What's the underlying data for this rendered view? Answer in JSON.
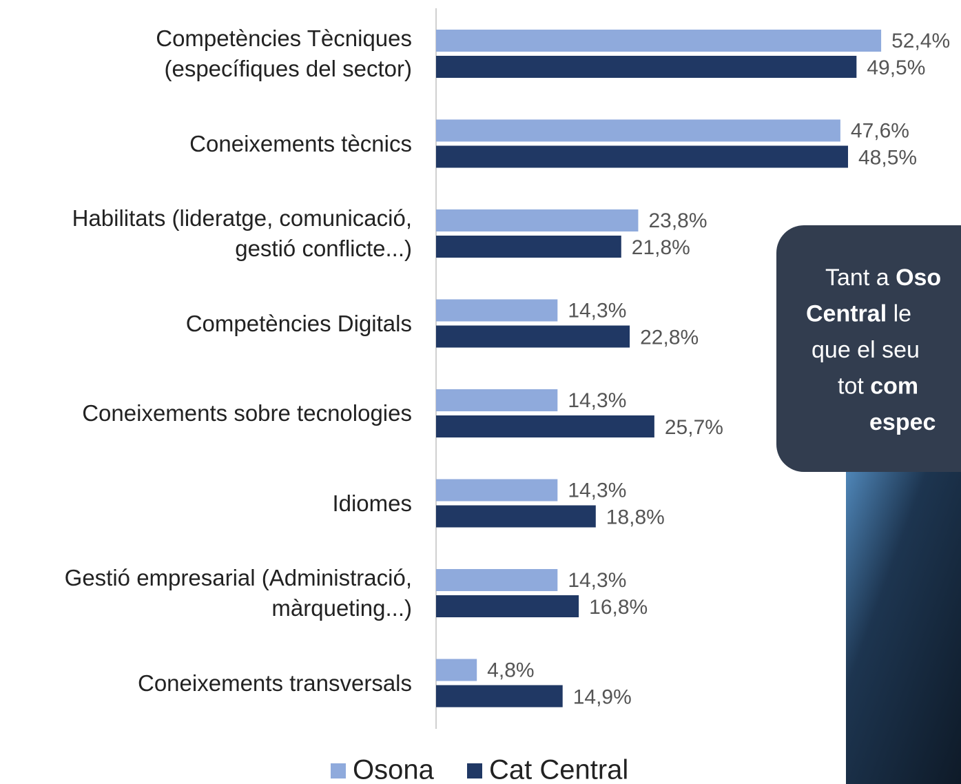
{
  "chart_data": {
    "type": "bar",
    "orientation": "horizontal",
    "categories": [
      "Competències Tècniques\n(específiques del sector)",
      "Coneixements tècnics",
      "Habilitats (lideratge, comunicació,\ngestió conflicte...)",
      "Competències Digitals",
      "Coneixements sobre tecnologies",
      "Idiomes",
      "Gestió empresarial (Administració,\nmàrqueting...)",
      "Coneixements transversals"
    ],
    "series": [
      {
        "name": "Osona",
        "color": "#8faadc",
        "values": [
          52.4,
          47.6,
          23.8,
          14.3,
          14.3,
          14.3,
          14.3,
          4.8
        ],
        "value_labels": [
          "52,4%",
          "47,6%",
          "23,8%",
          "14,3%",
          "14,3%",
          "14,3%",
          "14,3%",
          "4,8%"
        ]
      },
      {
        "name": "Cat Central",
        "color": "#203864",
        "values": [
          49.5,
          48.5,
          21.8,
          22.8,
          25.7,
          18.8,
          16.8,
          14.9
        ],
        "value_labels": [
          "49,5%",
          "48,5%",
          "21,8%",
          "22,8%",
          "25,7%",
          "18,8%",
          "16,8%",
          "14,9%"
        ]
      }
    ],
    "callout": {
      "lines": [
        [
          {
            "text": "Tant a "
          },
          {
            "text": "Oso",
            "bold": true
          }
        ],
        [
          {
            "text": "Central",
            "bold": true
          },
          {
            "text": " le"
          }
        ],
        [
          {
            "text": "que el seu "
          }
        ],
        [
          {
            "text": "tot "
          },
          {
            "text": "com",
            "bold": true
          }
        ],
        [
          {
            "text": "espec",
            "bold": true
          }
        ]
      ]
    }
  }
}
